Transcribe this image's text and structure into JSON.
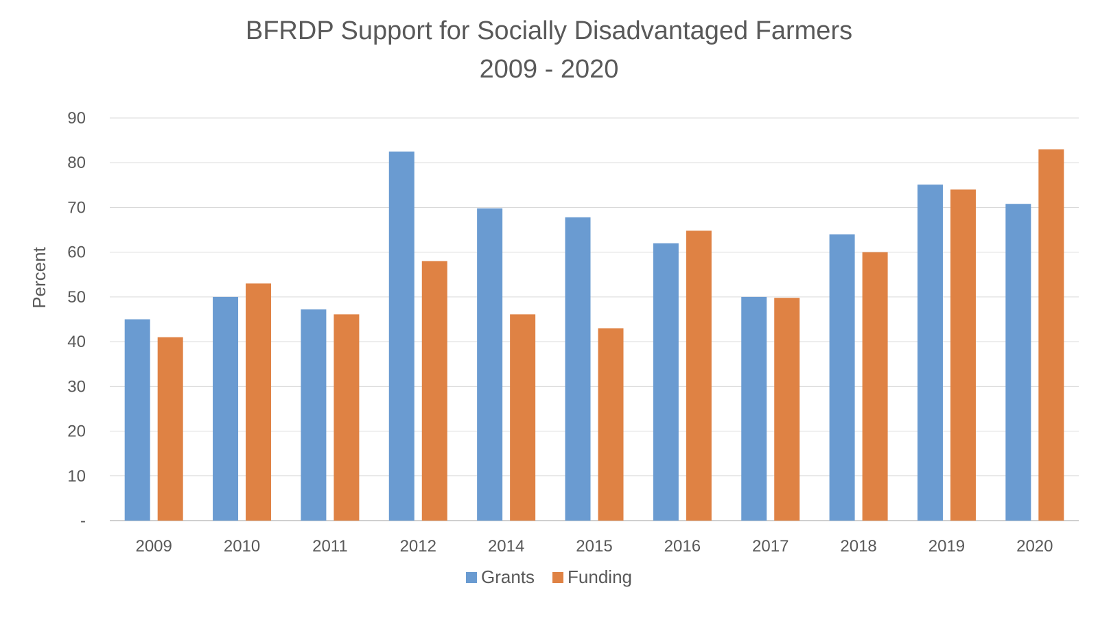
{
  "chart_data": {
    "type": "bar",
    "title": "BFRDP Support for Socially Disadvantaged Farmers",
    "subtitle": "2009 - 2020",
    "xlabel": "",
    "ylabel": "Percent",
    "ylim": [
      0,
      90
    ],
    "yticks": [
      "-",
      "10",
      "20",
      "30",
      "40",
      "50",
      "60",
      "70",
      "80",
      "90"
    ],
    "categories": [
      "2009",
      "2010",
      "2011",
      "2012",
      "2014",
      "2015",
      "2016",
      "2017",
      "2018",
      "2019",
      "2020"
    ],
    "series": [
      {
        "name": "Grants",
        "color": "#6a9bd1",
        "values": [
          45,
          50,
          47.2,
          82.5,
          69.8,
          67.8,
          62,
          50,
          64,
          75.1,
          70.8
        ]
      },
      {
        "name": "Funding",
        "color": "#df8244",
        "values": [
          41,
          53,
          46.1,
          58,
          46.1,
          43,
          64.8,
          49.8,
          60,
          74,
          83
        ]
      }
    ],
    "grid": true,
    "legend": "bottom"
  }
}
